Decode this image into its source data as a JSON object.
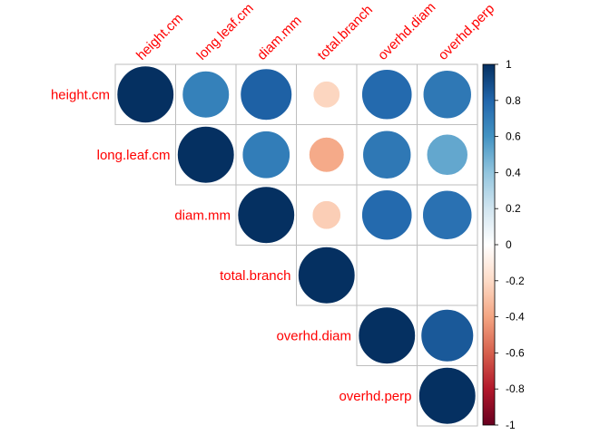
{
  "chart_data": {
    "type": "heatmap",
    "variables": [
      "height.cm",
      "long.leaf.cm",
      "diam.mm",
      "total.branch",
      "overhd.diam",
      "overhd.perp"
    ],
    "layout": "upper-triangle",
    "method": "circle",
    "matrix": [
      [
        1,
        0.68,
        0.82,
        -0.22,
        0.78,
        0.72
      ],
      [
        0.68,
        1,
        0.7,
        -0.38,
        0.72,
        0.52
      ],
      [
        0.82,
        0.7,
        1,
        -0.25,
        0.78,
        0.75
      ],
      [
        -0.22,
        -0.38,
        -0.25,
        1,
        0.0,
        0.0
      ],
      [
        0.78,
        0.72,
        0.78,
        0.0,
        1,
        0.85
      ],
      [
        0.72,
        0.52,
        0.75,
        0.0,
        0.85,
        1
      ]
    ],
    "colorbar": {
      "range": [
        -1,
        1
      ],
      "ticks": [
        "1",
        "0.8",
        "0.6",
        "0.4",
        "0.2",
        "0",
        "-0.2",
        "-0.4",
        "-0.6",
        "-0.8",
        "-1"
      ]
    },
    "colors": {
      "label": "#ff0000",
      "grid": "#bebebe",
      "negative_end": "#67001f",
      "mid": "#ffffff",
      "positive_end": "#053061"
    }
  }
}
